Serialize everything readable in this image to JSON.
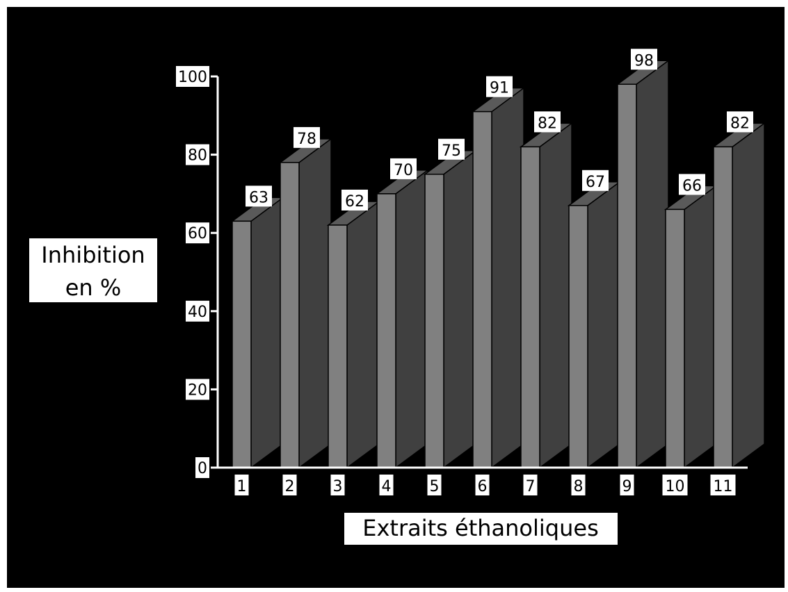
{
  "chart_data": {
    "type": "bar",
    "style": "3d",
    "categories": [
      "1",
      "2",
      "3",
      "4",
      "5",
      "6",
      "7",
      "8",
      "9",
      "10",
      "11"
    ],
    "values": [
      63,
      78,
      62,
      70,
      75,
      91,
      82,
      67,
      98,
      66,
      82
    ],
    "ylabel": [
      "Inhibition",
      "en %"
    ],
    "xlabel": "Extraits éthanoliques",
    "ylim": [
      0,
      100
    ],
    "yticks": [
      0,
      20,
      40,
      60,
      80,
      100
    ],
    "grid": false,
    "background": "#000000",
    "bar_front_color": "#808080",
    "bar_side_color": "#404040",
    "bar_top_color": "#5a5a5a"
  }
}
